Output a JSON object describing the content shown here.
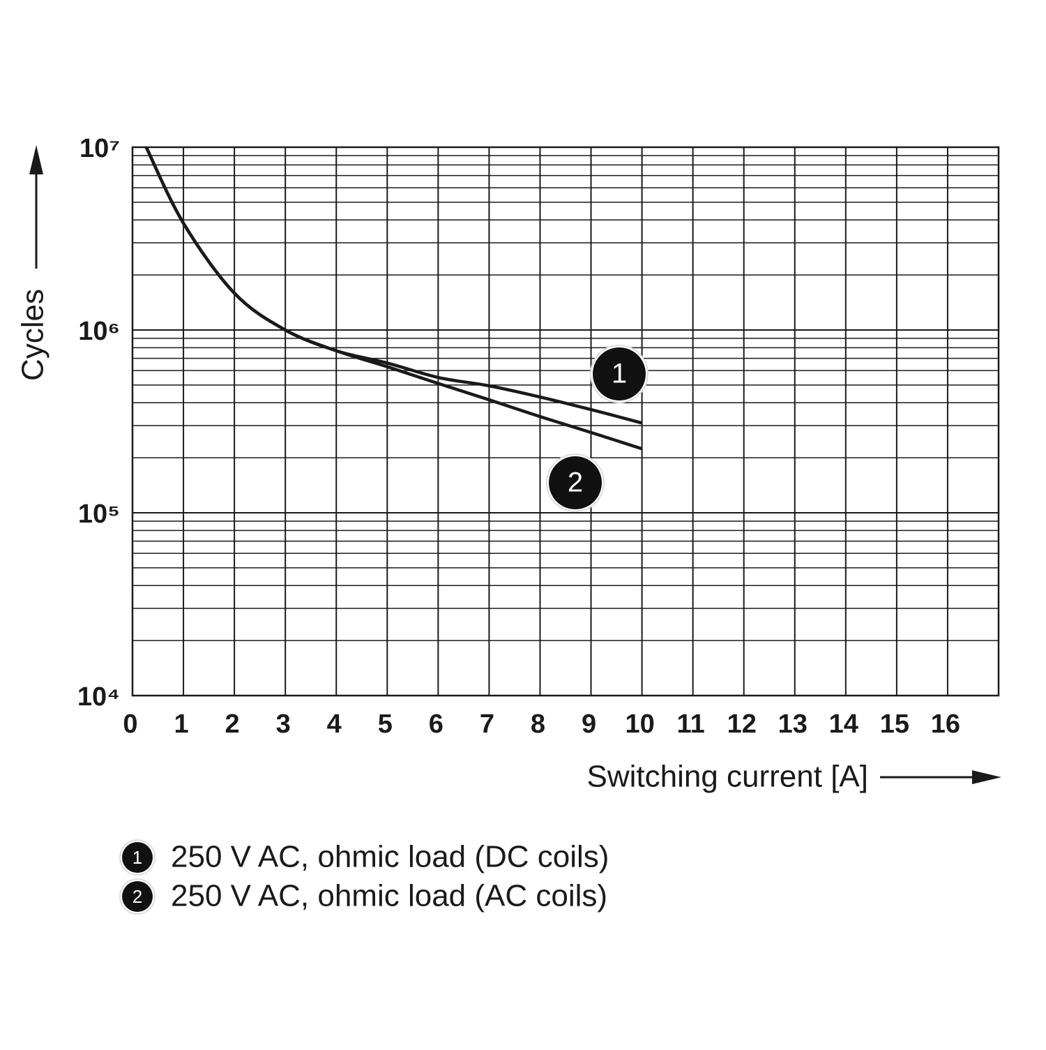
{
  "chart_data": {
    "type": "line",
    "x_label": "Switching current [A]",
    "y_label": "Cycles",
    "log_scale": true,
    "grid": true,
    "x": [
      0.27,
      1,
      2,
      3,
      4,
      5,
      6,
      7,
      8,
      9,
      10
    ],
    "series": [
      {
        "name": "250 V AC, ohmic load (DC coils)",
        "marker": "1",
        "color": "#1a1a1a",
        "values": [
          10000000,
          3840000,
          1590000,
          1000000,
          770000,
          660000,
          550000,
          495000,
          430000,
          367000,
          310000
        ]
      },
      {
        "name": "250 V AC, ohmic load (AC coils)",
        "marker": "2",
        "color": "#1a1a1a",
        "values": [
          10000000,
          3840000,
          1590000,
          1000000,
          770000,
          630000,
          510000,
          415000,
          336000,
          275000,
          224000
        ]
      }
    ],
    "xlim": [
      0,
      17
    ],
    "xticks": [
      0,
      1,
      2,
      3,
      4,
      5,
      6,
      7,
      8,
      9,
      10,
      11,
      12,
      13,
      14,
      15,
      16
    ],
    "ylim": [
      10000,
      10000000
    ],
    "yticks": [
      {
        "value": 10000,
        "label": "10⁴"
      },
      {
        "value": 100000,
        "label": "10⁵"
      },
      {
        "value": 1000000,
        "label": "10⁶"
      },
      {
        "value": 10000000,
        "label": "10⁷"
      }
    ],
    "yminorticks": [
      20000,
      30000,
      40000,
      50000,
      60000,
      70000,
      80000,
      90000,
      200000,
      300000,
      400000,
      500000,
      600000,
      700000,
      800000,
      900000,
      2000000,
      3000000,
      4000000,
      5000000,
      6000000,
      7000000,
      8000000,
      9000000
    ]
  }
}
